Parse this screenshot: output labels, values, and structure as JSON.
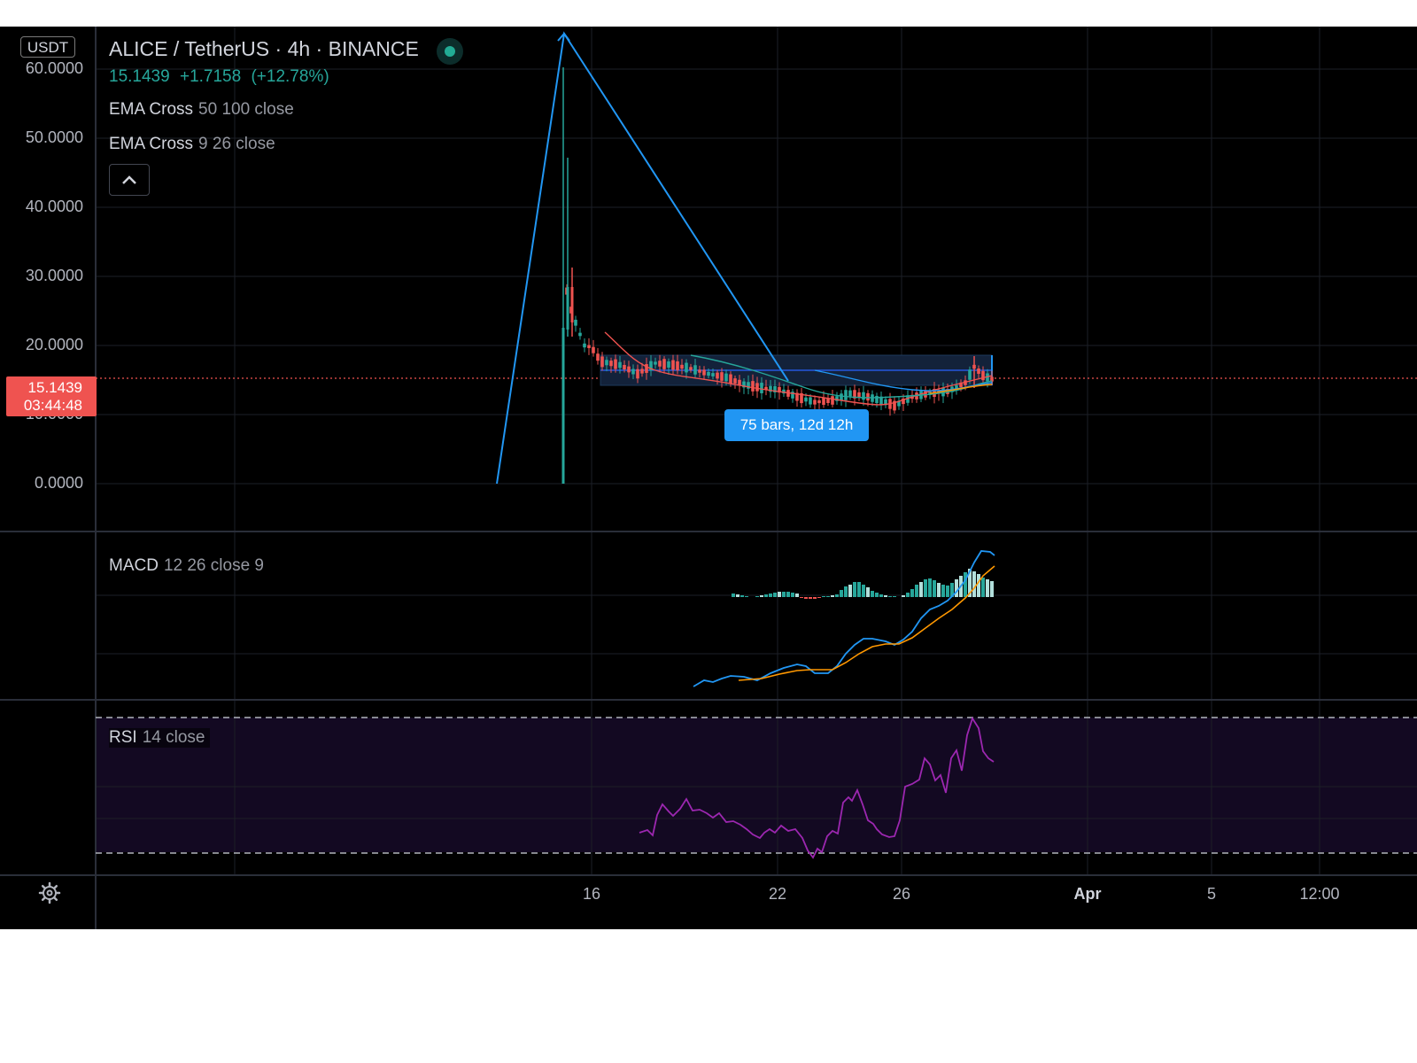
{
  "header": {
    "currency": "USDT",
    "symbol": "ALICE / TetherUS",
    "interval": "4h",
    "exchange": "BINANCE",
    "title_separator": "·"
  },
  "price": {
    "last": "15.1439",
    "change": "+1.7158",
    "change_pct": "(+12.78%)",
    "countdown": "03:44:48",
    "up_color": "#26a69a",
    "down_color": "#ef5350"
  },
  "indicators": {
    "ema1": {
      "name": "EMA Cross",
      "args": "50 100 close"
    },
    "ema2": {
      "name": "EMA Cross",
      "args": "9 26 close"
    },
    "macd": {
      "name": "MACD",
      "args": "12 26 close 9"
    },
    "rsi": {
      "name": "RSI",
      "args": "14 close"
    }
  },
  "price_axis": [
    "60.0000",
    "50.0000",
    "40.0000",
    "30.0000",
    "20.0000",
    "10.0000",
    "0.0000"
  ],
  "time_axis": [
    {
      "label": "16",
      "bold": false
    },
    {
      "label": "22",
      "bold": false
    },
    {
      "label": "26",
      "bold": false
    },
    {
      "label": "Apr",
      "bold": true
    },
    {
      "label": "5",
      "bold": false
    },
    {
      "label": "12:00",
      "bold": false
    }
  ],
  "measure": {
    "label": "75 bars, 12d 12h"
  },
  "icons": {
    "settings": "gear-icon",
    "collapse": "chevron-up-icon",
    "status": "market-open-dot"
  },
  "chart_data": {
    "type": "candlestick",
    "y_range": [
      0,
      60
    ],
    "current_price": 15.1439,
    "rsi_levels": [
      70,
      30
    ]
  }
}
